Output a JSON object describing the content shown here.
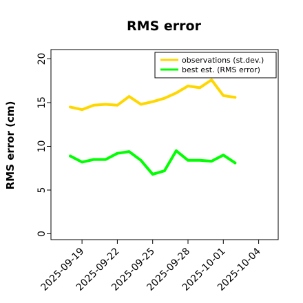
{
  "chart_data": {
    "type": "line",
    "title": "RMS error",
    "xlabel": "",
    "ylabel": "RMS error (cm)",
    "ylim": [
      0,
      21.1
    ],
    "yticks": [
      0,
      5,
      10,
      15,
      20
    ],
    "xticks": [
      {
        "label": "2025-09-19",
        "color": "#000000"
      },
      {
        "label": "2025-09-22",
        "color": "#000000"
      },
      {
        "label": "2025-09-25",
        "color": "#228B22"
      },
      {
        "label": "2025-09-28",
        "color": "#000000"
      },
      {
        "label": "2025-10-01",
        "color": "#000000"
      },
      {
        "label": "2025-10-04",
        "color": "#000000"
      }
    ],
    "x": [
      "2025-09-18",
      "2025-09-19",
      "2025-09-20",
      "2025-09-21",
      "2025-09-22",
      "2025-09-23",
      "2025-09-24",
      "2025-09-25",
      "2025-09-26",
      "2025-09-27",
      "2025-09-28",
      "2025-09-29",
      "2025-09-30",
      "2025-10-01",
      "2025-10-02"
    ],
    "grid": false,
    "legend": "top-right",
    "series": [
      {
        "name": "observations (st.dev.)",
        "color": "#FFD700",
        "values": [
          14.5,
          14.2,
          14.7,
          14.8,
          14.7,
          15.7,
          14.8,
          15.1,
          15.5,
          16.1,
          16.9,
          16.7,
          17.6,
          15.8,
          15.6
        ]
      },
      {
        "name": "best est. (RMS error)",
        "color": "#00FF00",
        "values": [
          8.9,
          8.2,
          8.5,
          8.5,
          9.2,
          9.4,
          8.4,
          6.8,
          7.2,
          9.5,
          8.4,
          8.4,
          8.3,
          9.0,
          8.1
        ]
      }
    ]
  }
}
